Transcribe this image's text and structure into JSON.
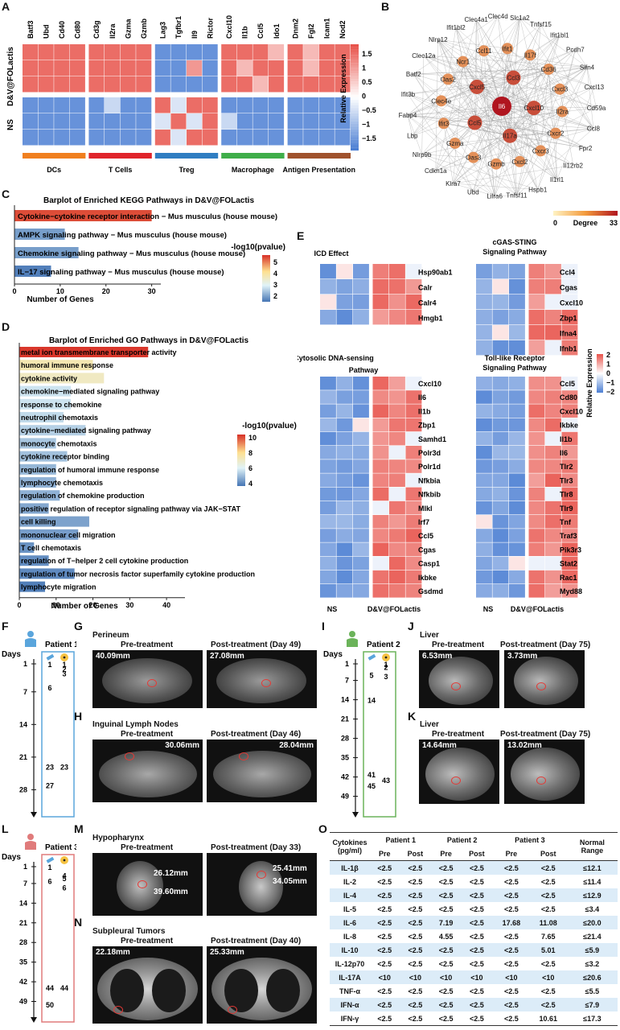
{
  "panel_labels": [
    "A",
    "B",
    "C",
    "D",
    "E",
    "F",
    "G",
    "H",
    "I",
    "J",
    "K",
    "L",
    "M",
    "N",
    "O"
  ],
  "panelA": {
    "genes": [
      "Batf3",
      "Ubd",
      "Cd40",
      "Cd80",
      "Cd3g",
      "Il2ra",
      "Gzma",
      "Gzmb",
      "Lag3",
      "Tgfbr1",
      "Il9",
      "Rictor",
      "Cxcl10",
      "Il1b",
      "Ccl5",
      "Ido1",
      "Dnm2",
      "Fgl2",
      "Icam1",
      "Nod2"
    ],
    "groups": [
      {
        "name": "DCs",
        "color": "#f07f1f"
      },
      {
        "name": "T Cells",
        "color": "#e0242b"
      },
      {
        "name": "Treg",
        "color": "#2f7dc2"
      },
      {
        "name": "Macrophage",
        "color": "#3fae49"
      },
      {
        "name": "Antigen Presentation",
        "color": "#a0522d"
      }
    ],
    "row_labels": [
      "D&V@FOLactis",
      "NS"
    ],
    "legend_title": "Relative Expression",
    "legend_ticks": [
      "1.5",
      "1",
      "0.5",
      "0",
      "−0.5",
      "−1",
      "−1.5"
    ]
  },
  "panelB": {
    "legend_min": "0",
    "legend_label": "Degree",
    "legend_max": "33",
    "nodes": [
      "Il6",
      "Ccl3",
      "Cxcl10",
      "Il17a",
      "Ccl5",
      "Cxcl5",
      "Cxcl3",
      "Il2ra",
      "Cxcr2",
      "Cxcr3",
      "Cxcl2",
      "Gzmb",
      "Oas3",
      "Gzma",
      "Ifit3",
      "Clec4e",
      "Oas2",
      "Ncr1",
      "Ccl11",
      "Ifit1",
      "Il17f",
      "Cd36",
      "Ccl8",
      "Fpr2",
      "Il12rb2",
      "Il1rl1",
      "Hspb1",
      "Tnfsf11",
      "Lilra6",
      "Ubd",
      "Klra7",
      "Cdkn1a",
      "Nlrp9b",
      "Lbp",
      "Fabp4",
      "Ifit3b",
      "Batf2",
      "Clec12a",
      "Nlrp12",
      "Ifit1bl2",
      "Clec4a1",
      "Clec4d",
      "Slc1a2",
      "Tnfsf15",
      "Ifit1bl1",
      "Pcdh7",
      "Slfn4",
      "Cxcl13",
      "Cd59a"
    ]
  },
  "panelC": {
    "title": "Barplot  of  Enriched  KEGG  Pathways  in  D&V@FOLactis",
    "xlabel": "Number  of  Genes",
    "legend_title": "-log10(pvalue)",
    "legend_ticks": [
      "5",
      "4",
      "3",
      "2"
    ],
    "ticks": [
      "0",
      "10",
      "20",
      "30"
    ]
  },
  "panelD": {
    "title": "Barplot  of  Enriched  GO  Pathways  in  D&V@FOLactis",
    "xlabel": "Number  of  Genes",
    "legend_title": "-log10(pvalue)",
    "legend_ticks": [
      "10",
      "8",
      "6",
      "4"
    ],
    "ticks": [
      "0",
      "10",
      "20",
      "30",
      "40"
    ]
  },
  "chart_data": [
    {
      "type": "bar",
      "title": "Barplot of Enriched KEGG Pathways in D&V@FOLactis",
      "xlabel": "Number of Genes",
      "xlim": [
        0,
        32
      ],
      "categories": [
        "Cytokine−cytokine receptor interaction − Mus musculus (house mouse)",
        "AMPK signaling pathway − Mus musculus (house mouse)",
        "Chemokine signaling pathway − Mus musculus (house mouse)",
        "IL−17 signaling pathway − Mus musculus (house mouse)"
      ],
      "values": [
        30,
        11,
        14,
        8
      ],
      "color_values": [
        5.3,
        2.2,
        2.2,
        1.9
      ]
    },
    {
      "type": "bar",
      "title": "Barplot of Enriched GO Pathways in D&V@FOLactis",
      "xlabel": "Number of Genes",
      "xlim": [
        0,
        45
      ],
      "categories": [
        "metal ion transmembrane transporter activity",
        "humoral immune response",
        "cytokine activity",
        "chemokine−mediated signaling pathway",
        "response to chemokine",
        "neutrophil chemotaxis",
        "cytokine−mediated signaling pathway",
        "monocyte chemotaxis",
        "cytokine receptor binding",
        "regulation of humoral immune response",
        "lymphocyte chemotaxis",
        "regulation of chemokine production",
        "positive regulation of receptor signaling pathway via JAK−STAT",
        "cell killing",
        "mononuclear cell migration",
        "T cell chemotaxis",
        "regulation of T−helper 2 cell cytokine production",
        "regulation of tumor necrosis factor superfamily cytokine production",
        "lymphocyte migration"
      ],
      "values": [
        35,
        20,
        23,
        14,
        14,
        12,
        18,
        10,
        13,
        10,
        10,
        11,
        8,
        19,
        16,
        4,
        8,
        15,
        7
      ],
      "color_values": [
        10.4,
        7.2,
        6.8,
        5.2,
        5.2,
        5.0,
        4.8,
        4.6,
        4.5,
        4.3,
        4.2,
        4.2,
        4.0,
        3.9,
        3.8,
        3.6,
        3.5,
        3.4,
        3.2
      ]
    }
  ],
  "panelE": {
    "icd_title": "ICD Effect",
    "icd_genes": [
      "Hsp90ab1",
      "Calr",
      "Calr4",
      "Hmgb1"
    ],
    "cgas_title": [
      "cGAS-STING",
      "Signaling Pathway"
    ],
    "cgas_genes": [
      "Ccl4",
      "Cgas",
      "Cxcl10",
      "Zbp1",
      "Ifna4",
      "Ifnb1"
    ],
    "dna_title": [
      "Cytosolic DNA-sensing",
      "Pathway"
    ],
    "dna_genes": [
      "Cxcl10",
      "Il6",
      "Il1b",
      "Zbp1",
      "Samhd1",
      "Polr3d",
      "Polr1d",
      "Nfkbia",
      "Nfkbib",
      "Mlkl",
      "Irf7",
      "Ccl5",
      "Cgas",
      "Casp1",
      "Ikbke",
      "Gsdmd"
    ],
    "tlr_title": [
      "Toll-like Receptor",
      "Signaling Pathway"
    ],
    "tlr_genes": [
      "Ccl5",
      "Cd80",
      "Cxcl10",
      "Ikbke",
      "Il1b",
      "Il6",
      "Tlr2",
      "Tlr3",
      "Tlr8",
      "Tlr9",
      "Tnf",
      "Traf3",
      "Pik3r3",
      "Stat2",
      "Rac1",
      "Myd88"
    ],
    "group_ns": "NS",
    "group_dv": "D&V@FOLactis",
    "legend_title": "Relative Expression",
    "legend_ticks": [
      "2",
      "1",
      "0",
      "−1",
      "−2"
    ]
  },
  "panelF": {
    "patient": "Patient 1",
    "days_label": "Days",
    "ticks": [
      "1",
      "7",
      "14",
      "21",
      "28"
    ],
    "color": "#5aa5dc",
    "left_marks": [
      "1",
      "6",
      "23",
      "27"
    ],
    "right_marks": [
      "1",
      "2",
      "3",
      "23"
    ]
  },
  "panelI": {
    "patient": "Patient 2",
    "days_label": "Days",
    "ticks": [
      "1",
      "7",
      "14",
      "21",
      "28",
      "35",
      "42",
      "49"
    ],
    "color": "#6bb35a",
    "left_marks": [
      "5",
      "14",
      "41",
      "45"
    ],
    "right_marks": [
      "1",
      "2",
      "3",
      "43"
    ]
  },
  "panelL": {
    "patient": "Patient 3",
    "days_label": "Days",
    "ticks": [
      "1",
      "7",
      "14",
      "21",
      "28",
      "35",
      "42",
      "49"
    ],
    "color": "#e07b7b",
    "left_marks": [
      "1",
      "6",
      "44",
      "50"
    ],
    "right_marks": [
      "4",
      "5",
      "6",
      "44"
    ]
  },
  "panelG": {
    "region": "Perineum",
    "pre_label": "Pre-treatment",
    "post_label": "Post-treatment (Day 49)",
    "pre_mm": "40.09mm",
    "post_mm": "27.08mm"
  },
  "panelH": {
    "region": "Inguinal Lymph Nodes",
    "pre_label": "Pre-treatment",
    "post_label": "Post-treatment (Day 46)",
    "pre_mm": "30.06mm",
    "post_mm": "28.04mm"
  },
  "panelJ": {
    "region": "Liver",
    "pre_label": "Pre-treatment",
    "post_label": "Post-treatment (Day 75)",
    "pre_mm": "6.53mm",
    "post_mm": "3.73mm"
  },
  "panelK": {
    "region": "Liver",
    "pre_label": "Pre-treatment",
    "post_label": "Post-treatment (Day 75)",
    "pre_mm": "14.64mm",
    "post_mm": "13.02mm"
  },
  "panelM": {
    "region": "Hypopharynx",
    "pre_label": "Pre-treatment",
    "post_label": "Post-treatment (Day 33)",
    "pre_mm": "26.12mm",
    "pre_mm2": "39.60mm",
    "post_mm": "25.41mm",
    "post_mm2": "34.05mm"
  },
  "panelN": {
    "region": "Subpleural Tumors",
    "pre_label": "Pre-treatment",
    "post_label": "Post-treatment (Day 40)",
    "pre_mm": "22.18mm",
    "post_mm": "25.33mm"
  },
  "panelO": {
    "header_cyto": "Cytokines",
    "header_unit": "(pg/ml)",
    "patients": [
      "Patient 1",
      "Patient 2",
      "Patient 3"
    ],
    "pre": "Pre",
    "post": "Post",
    "normal": "Normal",
    "range": "Range",
    "rows": [
      [
        "IL-1β",
        "<2.5",
        "<2.5",
        "<2.5",
        "<2.5",
        "<2.5",
        "<2.5",
        "≤12.1"
      ],
      [
        "IL-2",
        "<2.5",
        "<2.5",
        "<2.5",
        "<2.5",
        "<2.5",
        "<2.5",
        "≤11.4"
      ],
      [
        "IL-4",
        "<2.5",
        "<2.5",
        "<2.5",
        "<2.5",
        "<2.5",
        "<2.5",
        "≤12.9"
      ],
      [
        "IL-5",
        "<2.5",
        "<2.5",
        "<2.5",
        "<2.5",
        "<2.5",
        "<2.5",
        "≤3.4"
      ],
      [
        "IL-6",
        "<2.5",
        "<2.5",
        "7.19",
        "<2.5",
        "17.68",
        "11.08",
        "≤20.0"
      ],
      [
        "IL-8",
        "<2.5",
        "<2.5",
        "4.55",
        "<2.5",
        "<2.5",
        "7.65",
        "≤21.4"
      ],
      [
        "IL-10",
        "<2.5",
        "<2.5",
        "<2.5",
        "<2.5",
        "<2.5",
        "5.01",
        "≤5.9"
      ],
      [
        "IL-12p70",
        "<2.5",
        "<2.5",
        "<2.5",
        "<2.5",
        "<2.5",
        "<2.5",
        "≤3.2"
      ],
      [
        "IL-17A",
        "<10",
        "<10",
        "<10",
        "<10",
        "<10",
        "<10",
        "≤20.6"
      ],
      [
        "TNF-α",
        "<2.5",
        "<2.5",
        "<2.5",
        "<2.5",
        "<2.5",
        "<2.5",
        "≤5.5"
      ],
      [
        "IFN-α",
        "<2.5",
        "<2.5",
        "<2.5",
        "<2.5",
        "<2.5",
        "<2.5",
        "≤7.9"
      ],
      [
        "IFN-γ",
        "<2.5",
        "<2.5",
        "<2.5",
        "<2.5",
        "<2.5",
        "10.61",
        "≤17.3"
      ]
    ]
  }
}
